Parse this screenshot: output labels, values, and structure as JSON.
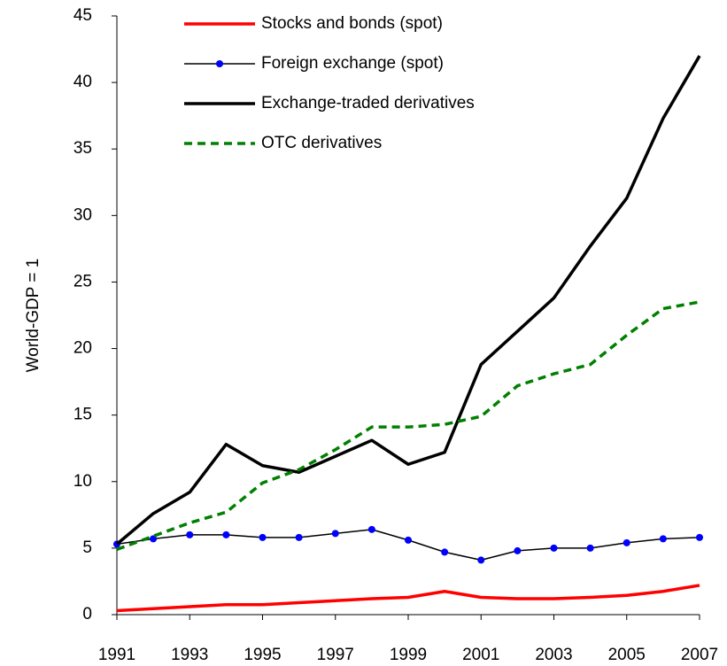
{
  "chart_data": {
    "type": "line",
    "y_label": "World-GDP = 1",
    "x": [
      1991,
      1992,
      1993,
      1994,
      1995,
      1996,
      1997,
      1998,
      1999,
      2000,
      2001,
      2002,
      2003,
      2004,
      2005,
      2006,
      2007
    ],
    "xlim": [
      1991,
      2007
    ],
    "xticks": [
      1991,
      1993,
      1995,
      1997,
      1999,
      2001,
      2003,
      2005,
      2007
    ],
    "ylim": [
      0,
      45
    ],
    "yticks": [
      0,
      5,
      10,
      15,
      20,
      25,
      30,
      35,
      40,
      45
    ],
    "legend": "top",
    "series": [
      {
        "name": "Stocks and bonds (spot)",
        "color": "#ff0000",
        "width": 3.5,
        "values": [
          0.3,
          0.45,
          0.6,
          0.75,
          0.75,
          0.9,
          1.05,
          1.2,
          1.3,
          1.75,
          1.3,
          1.2,
          1.2,
          1.3,
          1.45,
          1.75,
          2.2
        ]
      },
      {
        "name": "Foreign exchange (spot)",
        "color": "#000000",
        "width": 1.5,
        "markers": true,
        "marker_color": "#0000ff",
        "values": [
          5.3,
          5.7,
          6.0,
          6.0,
          5.8,
          5.8,
          6.1,
          6.4,
          5.6,
          4.7,
          4.1,
          4.8,
          5.0,
          5.0,
          5.4,
          5.7,
          5.8
        ]
      },
      {
        "name": "Exchange-traded derivatives",
        "color": "#000000",
        "width": 3.5,
        "values": [
          5.3,
          7.6,
          9.2,
          12.8,
          11.2,
          10.7,
          11.9,
          13.1,
          11.3,
          12.2,
          18.8,
          21.3,
          23.8,
          27.7,
          31.3,
          37.3,
          42.0
        ]
      },
      {
        "name": "OTC derivatives",
        "color": "#008000",
        "width": 3.5,
        "dashed": true,
        "values": [
          4.9,
          5.9,
          6.9,
          7.7,
          9.9,
          10.9,
          12.4,
          14.1,
          14.1,
          14.3,
          14.9,
          17.2,
          18.1,
          18.8,
          21.0,
          23.0,
          23.5
        ]
      }
    ]
  }
}
